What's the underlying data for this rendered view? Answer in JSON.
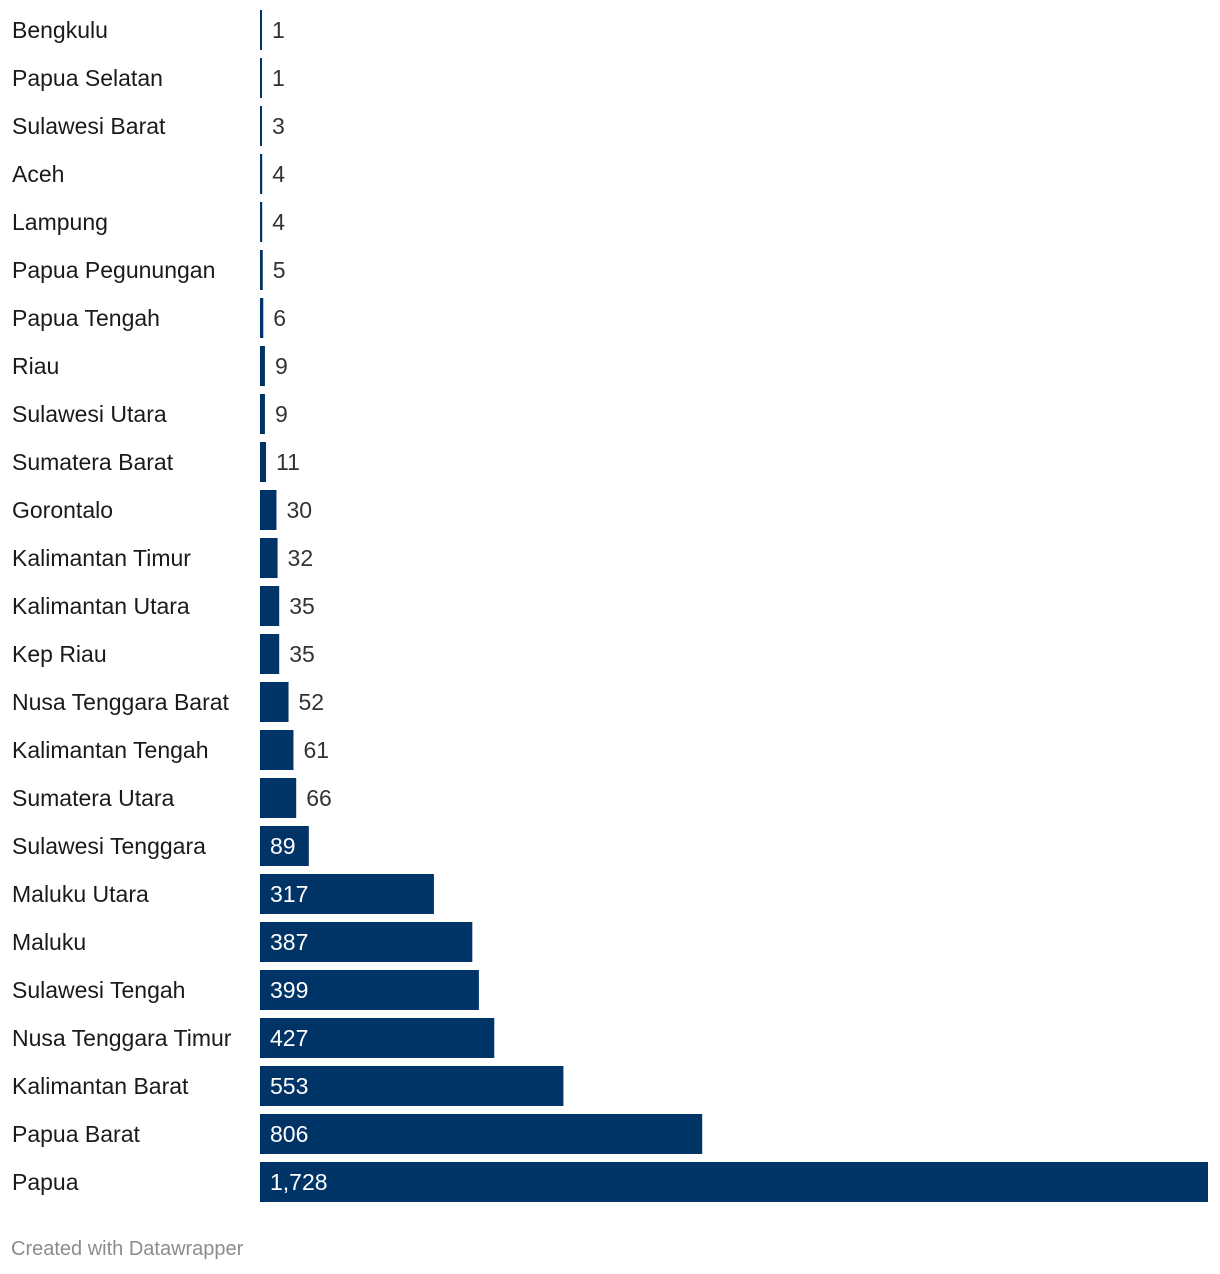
{
  "chart_data": {
    "type": "bar",
    "orientation": "horizontal",
    "categories": [
      "Bengkulu",
      "Papua Selatan",
      "Sulawesi Barat",
      "Aceh",
      "Lampung",
      "Papua Pegunungan",
      "Papua Tengah",
      "Riau",
      "Sulawesi Utara",
      "Sumatera Barat",
      "Gorontalo",
      "Kalimantan Timur",
      "Kalimantan Utara",
      "Kep Riau",
      "Nusa Tenggara Barat",
      "Kalimantan Tengah",
      "Sumatera Utara",
      "Sulawesi Tenggara",
      "Maluku Utara",
      "Maluku",
      "Sulawesi Tengah",
      "Nusa Tenggara Timur",
      "Kalimantan Barat",
      "Papua Barat",
      "Papua"
    ],
    "values": [
      1,
      1,
      3,
      4,
      4,
      5,
      6,
      9,
      9,
      11,
      30,
      32,
      35,
      35,
      52,
      61,
      66,
      89,
      317,
      387,
      399,
      427,
      553,
      806,
      1728
    ],
    "value_labels": [
      "1",
      "1",
      "3",
      "4",
      "4",
      "5",
      "6",
      "9",
      "9",
      "11",
      "30",
      "32",
      "35",
      "35",
      "52",
      "61",
      "66",
      "89",
      "317",
      "387",
      "399",
      "427",
      "553",
      "806",
      "1,728"
    ],
    "xlim": [
      0,
      1728
    ],
    "bar_color": "#003366",
    "grid": false
  },
  "credit": "Created with Datawrapper"
}
